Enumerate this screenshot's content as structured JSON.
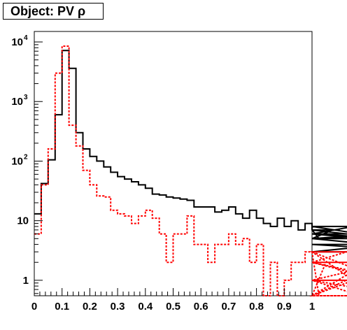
{
  "chart_data": {
    "type": "histogram",
    "title": "Object: PV ρ",
    "xlabel": "",
    "ylabel": "",
    "xlim": [
      0,
      1
    ],
    "ylim": [
      0.55,
      15000
    ],
    "ylog": true,
    "bin_width": 0.025,
    "x_ticks": [
      "0",
      "0.1",
      "0.2",
      "0.3",
      "0.4",
      "0.5",
      "0.6",
      "0.7",
      "0.8",
      "0.9",
      "1"
    ],
    "y_ticks": [
      {
        "value": 1,
        "base": "1",
        "exp": ""
      },
      {
        "value": 10,
        "base": "10",
        "exp": ""
      },
      {
        "value": 100,
        "base": "10",
        "exp": "2"
      },
      {
        "value": 1000,
        "base": "10",
        "exp": "3"
      },
      {
        "value": 10000,
        "base": "10",
        "exp": "4"
      }
    ],
    "grid": false,
    "series": [
      {
        "color": "#000000",
        "style": "solid",
        "values": [
          13,
          42,
          105,
          600,
          7200,
          3600,
          300,
          160,
          120,
          100,
          80,
          65,
          55,
          50,
          45,
          40,
          35,
          28,
          27,
          25,
          24,
          23,
          22,
          17,
          17,
          17,
          14,
          15,
          17,
          13,
          11,
          15,
          11,
          9,
          8,
          11,
          8,
          10,
          7,
          9,
          7,
          5,
          5,
          7,
          7,
          6,
          8,
          6,
          6,
          5,
          6,
          6,
          5,
          5,
          6,
          6,
          6,
          4,
          3,
          5,
          3
        ]
      },
      {
        "color": "#ff0000",
        "style": "dashed",
        "values": [
          6,
          40,
          160,
          3000,
          8500,
          400,
          180,
          70,
          40,
          26,
          25,
          15,
          13,
          12,
          9,
          12,
          15,
          11,
          6,
          2,
          6,
          6,
          12,
          4,
          4,
          2,
          4,
          4,
          6,
          4,
          5,
          2,
          4,
          0,
          2,
          0,
          1,
          2,
          2,
          3,
          3,
          0,
          2,
          2,
          2,
          3,
          1,
          0,
          2,
          2,
          1,
          2,
          1,
          0,
          3,
          3,
          0,
          3,
          3,
          3,
          3
        ]
      }
    ]
  }
}
